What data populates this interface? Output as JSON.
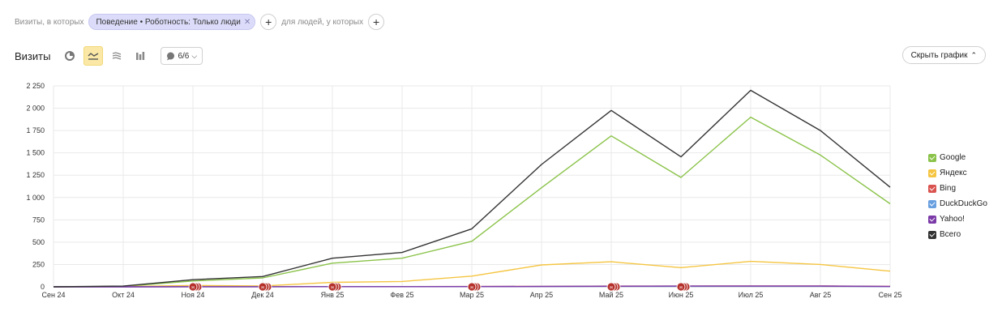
{
  "filters": {
    "visits_label": "Визиты, в которых",
    "chip_label": "Поведение • Роботность: Только люди",
    "people_label": "для людей, у которых"
  },
  "toolbar": {
    "title": "Визиты",
    "annotations_count": "6/6",
    "hide_chart_label": "Скрыть график"
  },
  "icons": [
    "pie-chart-icon",
    "line-chart-icon",
    "area-chart-icon",
    "bar-chart-icon",
    "comment-icon",
    "chevron-down-icon",
    "chevron-up-icon",
    "close-icon",
    "plus-icon"
  ],
  "colors": {
    "Google": "#8bc34a",
    "Яндекс": "#f5c542",
    "Bing": "#d9534f",
    "DuckDuckGo": "#6aa0e0",
    "Yahoo!": "#7b3aa8",
    "Всего": "#333333",
    "annotation": "#b5302a"
  },
  "chart_data": {
    "type": "line",
    "categories": [
      "Сен 24",
      "Окт 24",
      "Ноя 24",
      "Дек 24",
      "Янв 25",
      "Фев 25",
      "Мар 25",
      "Апр 25",
      "Май 25",
      "Июн 25",
      "Июл 25",
      "Авг 25",
      "Сен 25"
    ],
    "yticks": [
      "2 250",
      "2 000",
      "1 750",
      "1 500",
      "1 250",
      "1 000",
      "750",
      "500",
      "250",
      "0"
    ],
    "ylim": [
      0,
      2250
    ],
    "grid": true,
    "legend_position": "right",
    "series": [
      {
        "name": "Google",
        "values": [
          0,
          5,
          65,
          100,
          265,
          320,
          510,
          1110,
          1690,
          1225,
          1900,
          1475,
          930
        ]
      },
      {
        "name": "Яндекс",
        "values": [
          0,
          3,
          15,
          10,
          50,
          60,
          120,
          245,
          280,
          215,
          285,
          250,
          175
        ]
      },
      {
        "name": "Bing",
        "values": [
          0,
          0,
          2,
          2,
          3,
          3,
          4,
          5,
          8,
          8,
          10,
          10,
          5
        ]
      },
      {
        "name": "DuckDuckGo",
        "values": [
          0,
          0,
          1,
          1,
          2,
          2,
          3,
          4,
          5,
          5,
          6,
          6,
          3
        ]
      },
      {
        "name": "Yahoo!",
        "values": [
          0,
          0,
          1,
          1,
          2,
          2,
          3,
          4,
          6,
          8,
          8,
          8,
          4
        ]
      },
      {
        "name": "Всего",
        "values": [
          0,
          8,
          80,
          115,
          320,
          385,
          650,
          1370,
          1975,
          1455,
          2200,
          1750,
          1115
        ]
      }
    ],
    "annotation_markers": [
      2,
      3,
      4,
      6,
      8,
      9
    ],
    "annotation_label": "н"
  }
}
